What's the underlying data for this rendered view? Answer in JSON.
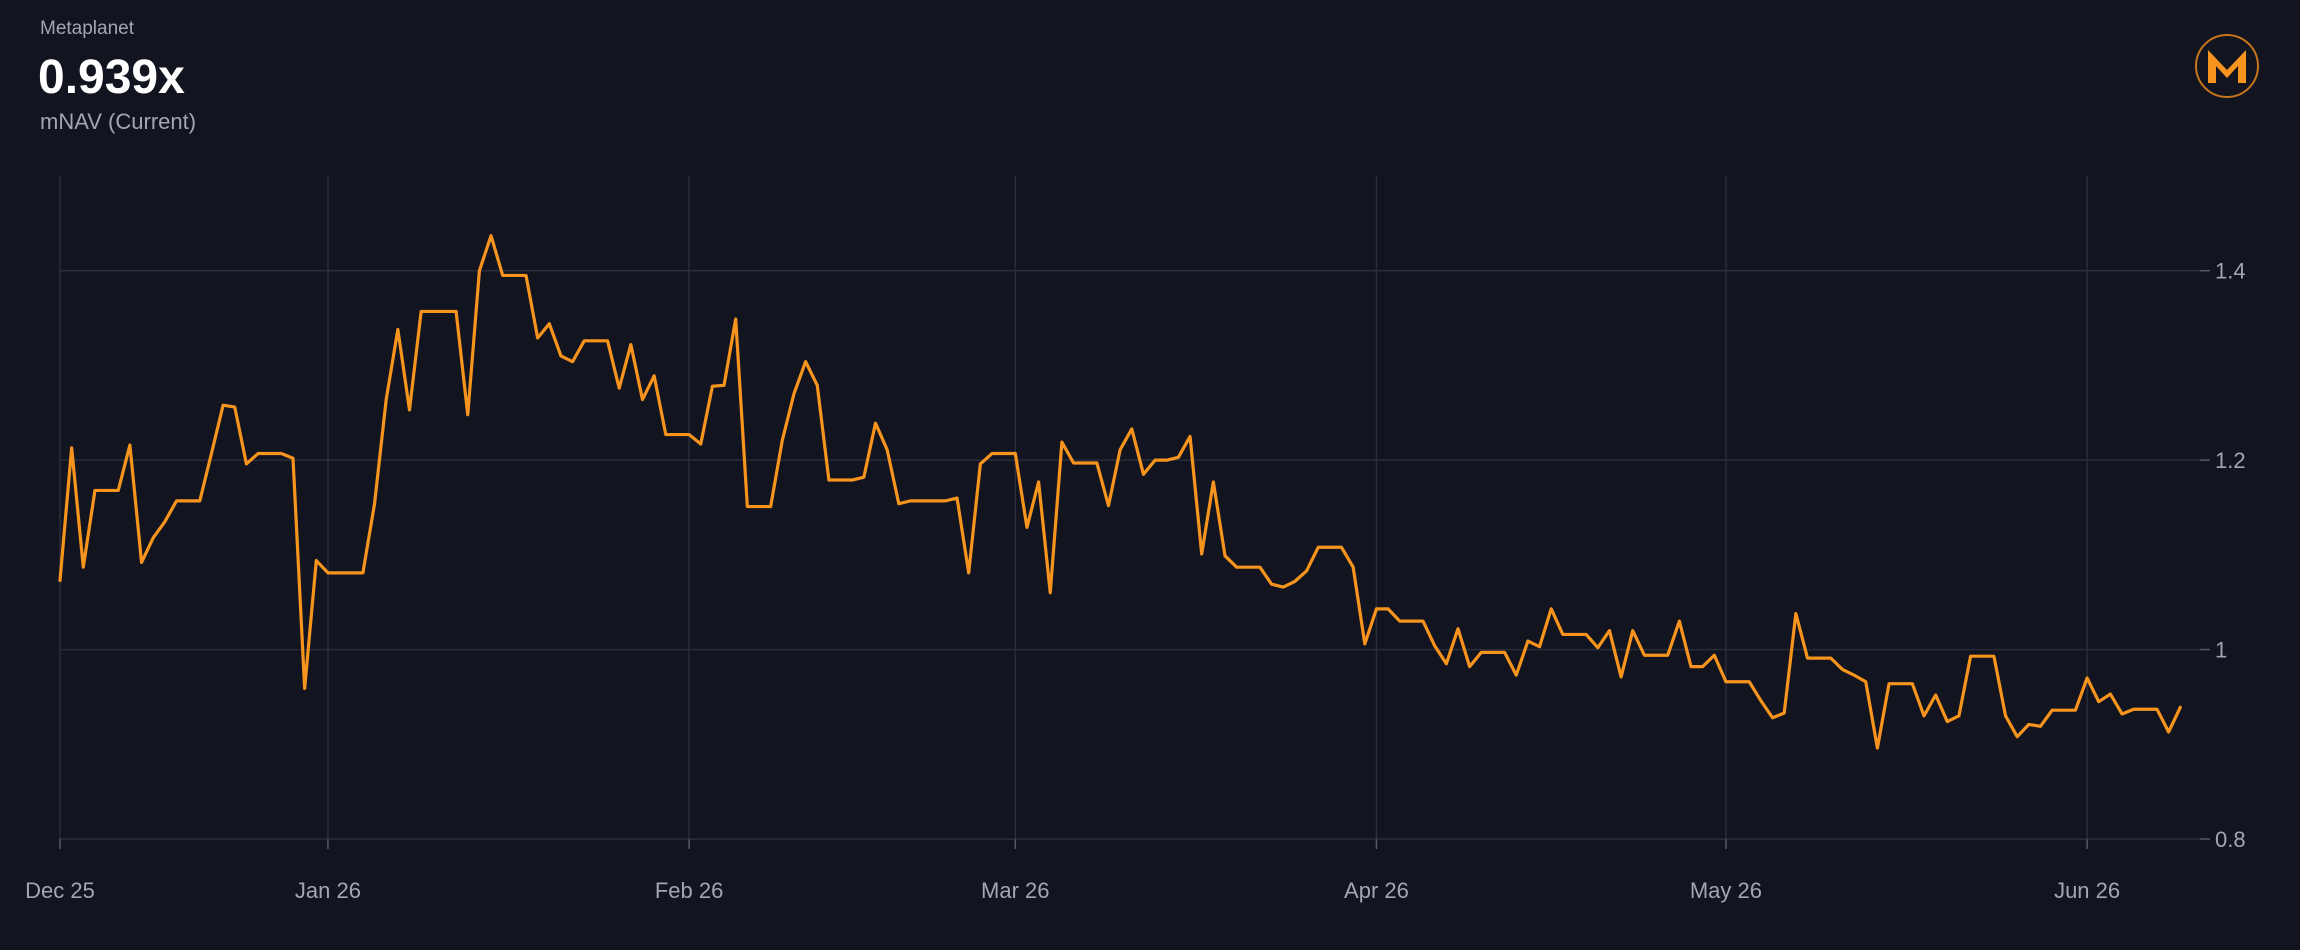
{
  "header": {
    "company": "Metaplanet",
    "value": "0.939x",
    "label": "mNAV (Current)"
  },
  "chart_data": {
    "type": "line",
    "categories": [
      "Dec 25",
      null,
      null,
      null,
      null,
      null,
      null,
      null,
      null,
      null,
      null,
      null,
      null,
      null,
      null,
      null,
      null,
      null,
      null,
      null,
      null,
      null,
      null,
      "Jan 26",
      null,
      null,
      null,
      null,
      null,
      null,
      null,
      null,
      null,
      null,
      null,
      null,
      null,
      null,
      null,
      null,
      null,
      null,
      null,
      null,
      null,
      null,
      null,
      null,
      null,
      null,
      null,
      null,
      null,
      null,
      "Feb 26",
      null,
      null,
      null,
      null,
      null,
      null,
      null,
      null,
      null,
      null,
      null,
      null,
      null,
      null,
      null,
      null,
      null,
      null,
      null,
      null,
      null,
      null,
      null,
      null,
      null,
      null,
      null,
      "Mar 26",
      null,
      null,
      null,
      null,
      null,
      null,
      null,
      null,
      null,
      null,
      null,
      null,
      null,
      null,
      null,
      null,
      null,
      null,
      null,
      null,
      null,
      null,
      null,
      null,
      null,
      null,
      null,
      null,
      null,
      null,
      "Apr 26",
      null,
      null,
      null,
      null,
      null,
      null,
      null,
      null,
      null,
      null,
      null,
      null,
      null,
      null,
      null,
      null,
      null,
      null,
      null,
      null,
      null,
      null,
      null,
      null,
      null,
      null,
      null,
      null,
      null,
      "May 26",
      null,
      null,
      null,
      null,
      null,
      null,
      null,
      null,
      null,
      null,
      null,
      null,
      null,
      null,
      null,
      null,
      null,
      null,
      null,
      null,
      null,
      null,
      null,
      null,
      null,
      null,
      null,
      null,
      null,
      null,
      "Jun 26",
      null,
      null,
      null,
      null,
      null,
      null,
      null,
      null
    ],
    "series": [
      {
        "name": "mNAV",
        "color": "#f7941d",
        "values": [
          1.073,
          1.213,
          1.087,
          1.168,
          1.168,
          1.168,
          1.216,
          1.092,
          1.118,
          1.135,
          1.157,
          1.157,
          1.157,
          1.207,
          1.258,
          1.256,
          1.196,
          1.207,
          1.207,
          1.207,
          1.202,
          0.959,
          1.094,
          1.081,
          1.081,
          1.081,
          1.081,
          1.154,
          1.264,
          1.338,
          1.253,
          1.357,
          1.357,
          1.357,
          1.357,
          1.248,
          1.4,
          1.437,
          1.395,
          1.395,
          1.395,
          1.329,
          1.344,
          1.31,
          1.304,
          1.326,
          1.326,
          1.326,
          1.276,
          1.322,
          1.264,
          1.289,
          1.227,
          1.227,
          1.227,
          1.217,
          1.278,
          1.279,
          1.349,
          1.151,
          1.151,
          1.151,
          1.221,
          1.27,
          1.304,
          1.279,
          1.179,
          1.179,
          1.179,
          1.182,
          1.239,
          1.211,
          1.154,
          1.157,
          1.157,
          1.157,
          1.157,
          1.16,
          1.081,
          1.196,
          1.207,
          1.207,
          1.207,
          1.129,
          1.177,
          1.06,
          1.219,
          1.197,
          1.197,
          1.197,
          1.152,
          1.211,
          1.233,
          1.185,
          1.2,
          1.2,
          1.203,
          1.225,
          1.101,
          1.177,
          1.099,
          1.087,
          1.087,
          1.087,
          1.069,
          1.066,
          1.072,
          1.083,
          1.108,
          1.108,
          1.108,
          1.087,
          1.006,
          1.043,
          1.043,
          1.03,
          1.03,
          1.03,
          1.004,
          0.985,
          1.022,
          0.982,
          0.997,
          0.997,
          0.997,
          0.973,
          1.009,
          1.003,
          1.043,
          1.016,
          1.016,
          1.016,
          1.002,
          1.02,
          0.971,
          1.02,
          0.994,
          0.994,
          0.994,
          1.03,
          0.982,
          0.982,
          0.994,
          0.966,
          0.966,
          0.966,
          0.946,
          0.928,
          0.933,
          1.038,
          0.991,
          0.991,
          0.991,
          0.979,
          0.973,
          0.966,
          0.896,
          0.964,
          0.964,
          0.964,
          0.93,
          0.952,
          0.924,
          0.93,
          0.993,
          0.993,
          0.993,
          0.93,
          0.908,
          0.921,
          0.919,
          0.936,
          0.936,
          0.936,
          0.97,
          0.945,
          0.953,
          0.932,
          0.937,
          0.937,
          0.937,
          0.913,
          0.939
        ]
      }
    ],
    "ylim": [
      0.8,
      1.5
    ],
    "yticks": [
      0.8,
      1,
      1.2,
      1.4
    ],
    "grid": true
  }
}
